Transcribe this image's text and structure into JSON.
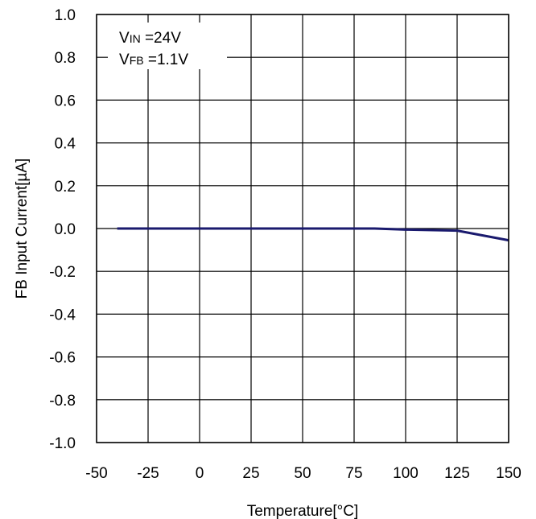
{
  "chart_data": {
    "type": "line",
    "xlabel": "Temperature[°C]",
    "ylabel": "FB Input Current[µA]",
    "xlim": [
      -50,
      150
    ],
    "ylim": [
      -1.0,
      1.0
    ],
    "xticks": [
      -50,
      -25,
      0,
      25,
      50,
      75,
      100,
      125,
      150
    ],
    "xtick_labels": [
      "-50",
      "-25",
      "0",
      "25",
      "50",
      "75",
      "100",
      "125",
      "150"
    ],
    "yticks": [
      1.0,
      0.8,
      0.6,
      0.4,
      0.2,
      0.0,
      -0.2,
      -0.4,
      -0.6,
      -0.8,
      -1.0
    ],
    "ytick_labels": [
      "1.0",
      "0.8",
      "0.6",
      "0.4",
      "0.2",
      "0.0",
      "-0.2",
      "-0.4",
      "-0.6",
      "-0.8",
      "-1.0"
    ],
    "grid": true,
    "annotations": [
      {
        "main": "V",
        "sub": "IN",
        "rest": " =24V"
      },
      {
        "main": "V",
        "sub": "FB",
        "rest": " =1.1V"
      }
    ],
    "series": [
      {
        "color": "#1a1a6e",
        "x": [
          -40,
          -25,
          0,
          25,
          50,
          75,
          85,
          100,
          125,
          150
        ],
        "y": [
          0.0,
          0.0,
          0.0,
          0.0,
          0.0,
          0.0,
          0.0,
          -0.005,
          -0.01,
          -0.055
        ]
      }
    ]
  }
}
